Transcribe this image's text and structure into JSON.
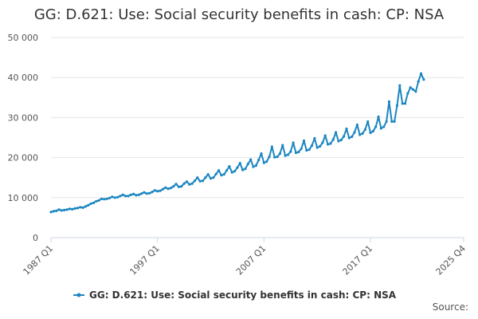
{
  "title": "GG: D.621: Use: Social security benefits in cash: CP: NSA",
  "source_label": "Source:",
  "colors": {
    "series": "#1b86c0",
    "grid": "#e6e6e6",
    "axis_text": "#555555",
    "axis_line": "#ccd6eb"
  },
  "chart_data": {
    "type": "line",
    "title": "GG: D.621: Use: Social security benefits in cash: CP: NSA",
    "xlabel": "",
    "ylabel": "",
    "ylim": [
      0,
      50000
    ],
    "yticks": [
      0,
      10000,
      20000,
      30000,
      40000,
      50000
    ],
    "ytick_labels": [
      "0",
      "10 000",
      "20 000",
      "30 000",
      "40 000",
      "50 000"
    ],
    "xtick_labels": [
      "1987 Q1",
      "1997 Q1",
      "2007 Q1",
      "2017 Q1",
      "2025 Q4"
    ],
    "grid": true,
    "legend_position": "bottom",
    "series": [
      {
        "name": "GG: D.621: Use: Social security benefits in cash: CP: NSA",
        "x_start": "1987 Q1",
        "frequency": "quarterly",
        "values": [
          6400,
          6600,
          6700,
          7000,
          6800,
          6900,
          7000,
          7200,
          7100,
          7300,
          7400,
          7600,
          7500,
          7800,
          8100,
          8500,
          8700,
          9100,
          9300,
          9700,
          9600,
          9700,
          9900,
          10200,
          10000,
          10100,
          10400,
          10700,
          10400,
          10400,
          10700,
          10900,
          10600,
          10700,
          11000,
          11300,
          11000,
          11100,
          11400,
          11800,
          11600,
          11700,
          12100,
          12500,
          12200,
          12400,
          12800,
          13400,
          12700,
          12800,
          13500,
          14000,
          13300,
          13500,
          14200,
          15000,
          14100,
          14200,
          15000,
          15800,
          14800,
          15000,
          15900,
          16800,
          15600,
          15800,
          16800,
          17800,
          16300,
          16600,
          17500,
          18600,
          16900,
          17200,
          18400,
          19500,
          17700,
          18000,
          19400,
          21000,
          18700,
          19000,
          20200,
          22700,
          20100,
          20200,
          21000,
          23100,
          20500,
          20700,
          21500,
          23700,
          21200,
          21400,
          22200,
          24200,
          21800,
          22000,
          23000,
          24800,
          22500,
          22800,
          23700,
          25500,
          23300,
          23500,
          24500,
          26300,
          24100,
          24400,
          25300,
          27200,
          24900,
          25200,
          26300,
          28200,
          25700,
          26000,
          27000,
          29000,
          26200,
          26600,
          27700,
          30200,
          27300,
          27700,
          29000,
          34000,
          29000,
          29000,
          33000,
          38000,
          33500,
          33500,
          36000,
          37500,
          37000,
          36500,
          39000,
          41000,
          39500
        ]
      }
    ]
  }
}
